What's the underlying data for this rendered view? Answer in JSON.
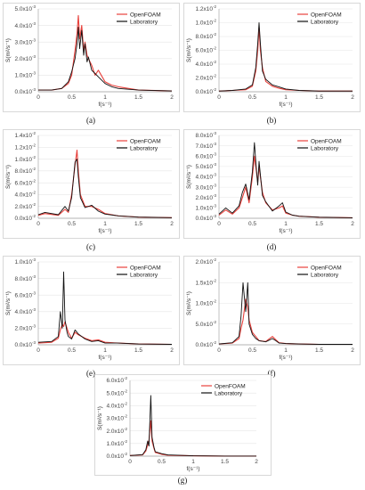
{
  "chart_data": [
    {
      "type": "line",
      "label": "(a)",
      "y_unit": "-3",
      "y_ticks": [
        "0.0x10",
        "1.0x10",
        "2.0x10",
        "3.0x10",
        "4.0x10",
        "5.0x10"
      ],
      "ylim": [
        0,
        5
      ],
      "x_ticks": [
        "0",
        "0.5",
        "1",
        "1.5",
        "2"
      ],
      "xlim": [
        0,
        2
      ],
      "xlabel": "f(s⁻¹)",
      "ylabel": "S(m²/s⁻¹)",
      "series": [
        {
          "name": "OpenFOAM",
          "color": "#e8413c",
          "x": [
            0,
            0.2,
            0.35,
            0.45,
            0.5,
            0.55,
            0.58,
            0.6,
            0.62,
            0.65,
            0.68,
            0.7,
            0.73,
            0.75,
            0.8,
            0.85,
            0.9,
            1.0,
            1.1,
            1.2,
            1.5,
            2.0
          ],
          "y": [
            0.1,
            0.1,
            0.2,
            0.5,
            1.0,
            2.5,
            3.5,
            4.6,
            3.2,
            4.0,
            2.5,
            3.0,
            2.2,
            2.0,
            1.6,
            1.0,
            1.3,
            0.6,
            0.4,
            0.3,
            0.1,
            0.05
          ]
        },
        {
          "name": "Laboratory",
          "color": "#111111",
          "x": [
            0,
            0.2,
            0.35,
            0.45,
            0.5,
            0.55,
            0.58,
            0.6,
            0.62,
            0.65,
            0.68,
            0.7,
            0.73,
            0.75,
            0.8,
            0.85,
            0.9,
            1.0,
            1.1,
            1.2,
            1.5,
            2.0
          ],
          "y": [
            0.1,
            0.1,
            0.2,
            0.6,
            1.2,
            2.0,
            2.9,
            3.9,
            2.6,
            3.7,
            2.2,
            2.9,
            1.8,
            2.1,
            1.3,
            1.1,
            0.9,
            0.5,
            0.3,
            0.2,
            0.1,
            0.05
          ]
        }
      ]
    },
    {
      "type": "line",
      "label": "(b)",
      "y_unit": "-2",
      "y_ticks": [
        "0.0x10",
        "2.0x10",
        "4.0x10",
        "6.0x10",
        "8.0x10",
        "1.0x10",
        "1.2x10"
      ],
      "ylim": [
        0,
        1.2
      ],
      "x_ticks": [
        "0",
        "0.5",
        "1",
        "1.5",
        "2"
      ],
      "xlim": [
        0,
        2
      ],
      "xlabel": "f(s⁻¹)",
      "ylabel": "S(m²/s⁻¹)",
      "series": [
        {
          "name": "OpenFOAM",
          "color": "#e8413c",
          "x": [
            0,
            0.2,
            0.4,
            0.5,
            0.55,
            0.58,
            0.6,
            0.62,
            0.65,
            0.7,
            0.8,
            0.9,
            1.0,
            1.2,
            1.5,
            2.0
          ],
          "y": [
            0.01,
            0.02,
            0.03,
            0.08,
            0.3,
            0.6,
            0.93,
            0.6,
            0.35,
            0.15,
            0.08,
            0.05,
            0.03,
            0.02,
            0.01,
            0.01
          ]
        },
        {
          "name": "Laboratory",
          "color": "#111111",
          "x": [
            0,
            0.2,
            0.4,
            0.5,
            0.55,
            0.58,
            0.6,
            0.62,
            0.65,
            0.7,
            0.8,
            0.9,
            1.0,
            1.2,
            1.5,
            2.0
          ],
          "y": [
            0.01,
            0.02,
            0.04,
            0.1,
            0.35,
            0.7,
            1.0,
            0.7,
            0.3,
            0.18,
            0.1,
            0.07,
            0.04,
            0.02,
            0.01,
            0.01
          ]
        }
      ]
    },
    {
      "type": "line",
      "label": "(c)",
      "y_unit": "-2",
      "y_ticks": [
        "0.0x10",
        "2.0x10",
        "4.0x10",
        "6.0x10",
        "8.0x10",
        "1.0x10",
        "1.2x10",
        "1.4x10"
      ],
      "ylim": [
        0,
        1.4
      ],
      "x_ticks": [
        "0",
        "0.5",
        "1",
        "1.5",
        "2"
      ],
      "xlim": [
        0,
        2
      ],
      "xlabel": "f(s⁻¹)",
      "ylabel": "S(m²/s⁻¹)",
      "series": [
        {
          "name": "OpenFOAM",
          "color": "#e8413c",
          "x": [
            0,
            0.1,
            0.3,
            0.4,
            0.45,
            0.5,
            0.55,
            0.58,
            0.6,
            0.63,
            0.7,
            0.8,
            0.9,
            1.0,
            1.2,
            1.5,
            2.0
          ],
          "y": [
            0.05,
            0.08,
            0.05,
            0.15,
            0.1,
            0.4,
            0.9,
            1.15,
            0.8,
            0.4,
            0.2,
            0.2,
            0.15,
            0.08,
            0.04,
            0.02,
            0.01
          ]
        },
        {
          "name": "Laboratory",
          "color": "#111111",
          "x": [
            0,
            0.1,
            0.3,
            0.4,
            0.45,
            0.5,
            0.55,
            0.58,
            0.6,
            0.63,
            0.7,
            0.8,
            0.9,
            1.0,
            1.2,
            1.5,
            2.0
          ],
          "y": [
            0.06,
            0.1,
            0.06,
            0.2,
            0.12,
            0.35,
            0.95,
            1.0,
            0.7,
            0.35,
            0.18,
            0.22,
            0.12,
            0.07,
            0.04,
            0.02,
            0.01
          ]
        }
      ]
    },
    {
      "type": "line",
      "label": "(d)",
      "y_unit": "-3",
      "y_ticks": [
        "0.0x10",
        "1.0x10",
        "2.0x10",
        "3.0x10",
        "4.0x10",
        "5.0x10",
        "6.0x10",
        "7.0x10",
        "8.0x10"
      ],
      "ylim": [
        0,
        8
      ],
      "x_ticks": [
        "0",
        "0.5",
        "1",
        "1.5",
        "2"
      ],
      "xlim": [
        0,
        2
      ],
      "xlabel": "f(s⁻¹)",
      "ylabel": "S(m²/s⁻¹)",
      "series": [
        {
          "name": "OpenFOAM",
          "color": "#e8413c",
          "x": [
            0,
            0.1,
            0.2,
            0.3,
            0.35,
            0.4,
            0.45,
            0.5,
            0.53,
            0.55,
            0.58,
            0.6,
            0.65,
            0.7,
            0.8,
            0.9,
            0.95,
            1.0,
            1.1,
            1.2,
            1.5,
            2.0
          ],
          "y": [
            0.3,
            0.8,
            0.4,
            1.0,
            2.0,
            3.0,
            1.5,
            4.0,
            6.0,
            5.0,
            3.5,
            5.0,
            2.5,
            1.5,
            0.8,
            1.0,
            1.2,
            0.5,
            0.3,
            0.2,
            0.1,
            0.05
          ]
        },
        {
          "name": "Laboratory",
          "color": "#111111",
          "x": [
            0,
            0.1,
            0.2,
            0.3,
            0.35,
            0.4,
            0.45,
            0.5,
            0.53,
            0.55,
            0.58,
            0.6,
            0.65,
            0.7,
            0.8,
            0.9,
            0.95,
            1.0,
            1.1,
            1.2,
            1.5,
            2.0
          ],
          "y": [
            0.4,
            1.0,
            0.5,
            1.2,
            2.5,
            3.3,
            1.8,
            4.5,
            7.3,
            5.5,
            3.2,
            5.5,
            2.2,
            1.6,
            0.7,
            1.2,
            1.5,
            0.6,
            0.3,
            0.2,
            0.1,
            0.05
          ]
        }
      ]
    },
    {
      "type": "line",
      "label": "(e)",
      "y_unit": "-3",
      "y_ticks": [
        "0.0x10",
        "2.0x10",
        "4.0x10",
        "6.0x10",
        "8.0x10",
        "1.0x10"
      ],
      "ylim": [
        0,
        10
      ],
      "x_ticks": [
        "0",
        "0.5",
        "1",
        "1.5",
        "2"
      ],
      "xlim": [
        0,
        2
      ],
      "xlabel": "f(s⁻¹)",
      "ylabel": "S(m²/s⁻¹)",
      "series": [
        {
          "name": "OpenFOAM",
          "color": "#e8413c",
          "x": [
            0,
            0.2,
            0.3,
            0.33,
            0.36,
            0.38,
            0.4,
            0.43,
            0.45,
            0.5,
            0.55,
            0.6,
            0.7,
            0.8,
            0.9,
            1.0,
            1.2,
            1.5,
            2.0
          ],
          "y": [
            0.2,
            0.3,
            0.8,
            1.8,
            2.5,
            2.2,
            2.8,
            2.0,
            1.5,
            0.8,
            1.5,
            1.2,
            0.8,
            0.5,
            0.6,
            0.3,
            0.2,
            0.1,
            0.05
          ]
        },
        {
          "name": "Laboratory",
          "color": "#111111",
          "x": [
            0,
            0.2,
            0.3,
            0.33,
            0.36,
            0.38,
            0.4,
            0.43,
            0.45,
            0.5,
            0.55,
            0.6,
            0.7,
            0.8,
            0.9,
            1.0,
            1.2,
            1.5,
            2.0
          ],
          "y": [
            0.3,
            0.4,
            1.0,
            4.0,
            2.0,
            8.8,
            3.0,
            1.5,
            1.0,
            0.7,
            1.8,
            1.3,
            0.7,
            0.4,
            0.5,
            0.2,
            0.2,
            0.1,
            0.05
          ]
        }
      ]
    },
    {
      "type": "line",
      "label": "(f)",
      "y_unit": "-2",
      "y_ticks": [
        "0.0x10",
        "5.0x10",
        "1.0x10",
        "1.5x10",
        "2.0x10"
      ],
      "ylim": [
        0,
        2
      ],
      "x_ticks": [
        "0",
        "0.5",
        "1",
        "1.5",
        "2"
      ],
      "xlim": [
        0,
        2
      ],
      "xlabel": "f(s⁻¹)",
      "ylabel": "S(m²/s⁻¹)",
      "series": [
        {
          "name": "OpenFOAM",
          "color": "#e8413c",
          "x": [
            0,
            0.2,
            0.3,
            0.33,
            0.36,
            0.4,
            0.43,
            0.45,
            0.5,
            0.55,
            0.6,
            0.7,
            0.8,
            0.85,
            0.9,
            1.0,
            1.2,
            1.5,
            2.0
          ],
          "y": [
            0.02,
            0.04,
            0.15,
            0.4,
            0.6,
            1.1,
            0.9,
            0.6,
            0.3,
            0.2,
            0.1,
            0.08,
            0.2,
            0.12,
            0.05,
            0.03,
            0.02,
            0.01,
            0.01
          ]
        },
        {
          "name": "Laboratory",
          "color": "#111111",
          "x": [
            0,
            0.2,
            0.3,
            0.33,
            0.36,
            0.4,
            0.43,
            0.45,
            0.5,
            0.55,
            0.6,
            0.7,
            0.8,
            0.85,
            0.9,
            1.0,
            1.2,
            1.5,
            2.0
          ],
          "y": [
            0.02,
            0.05,
            0.2,
            0.7,
            1.5,
            0.8,
            1.5,
            0.5,
            0.25,
            0.15,
            0.1,
            0.07,
            0.15,
            0.1,
            0.04,
            0.03,
            0.02,
            0.01,
            0.01
          ]
        }
      ]
    },
    {
      "type": "line",
      "label": "(g)",
      "y_unit": "-2",
      "y_ticks": [
        "0.0x10",
        "1.0x10",
        "2.0x10",
        "3.0x10",
        "4.0x10",
        "5.0x10",
        "6.0x10"
      ],
      "ylim": [
        0,
        6
      ],
      "x_ticks": [
        "0",
        "0.5",
        "1",
        "1.5",
        "2"
      ],
      "xlim": [
        0,
        2
      ],
      "xlabel": "f(s⁻¹)",
      "ylabel": "S(m²/s⁻¹)",
      "series": [
        {
          "name": "OpenFOAM",
          "color": "#e8413c",
          "x": [
            0,
            0.2,
            0.25,
            0.28,
            0.3,
            0.33,
            0.35,
            0.38,
            0.4,
            0.5,
            0.6,
            0.8,
            1.0,
            1.5,
            2.0
          ],
          "y": [
            0.05,
            0.1,
            0.4,
            0.9,
            1.2,
            2.8,
            1.2,
            0.6,
            0.3,
            0.15,
            0.08,
            0.05,
            0.03,
            0.01,
            0.01
          ]
        },
        {
          "name": "Laboratory",
          "color": "#111111",
          "x": [
            0,
            0.2,
            0.25,
            0.28,
            0.3,
            0.33,
            0.35,
            0.38,
            0.4,
            0.5,
            0.6,
            0.8,
            1.0,
            1.5,
            2.0
          ],
          "y": [
            0.05,
            0.12,
            0.5,
            1.2,
            0.8,
            4.8,
            1.5,
            0.7,
            0.35,
            0.2,
            0.1,
            0.06,
            0.03,
            0.01,
            0.01
          ]
        }
      ]
    }
  ]
}
